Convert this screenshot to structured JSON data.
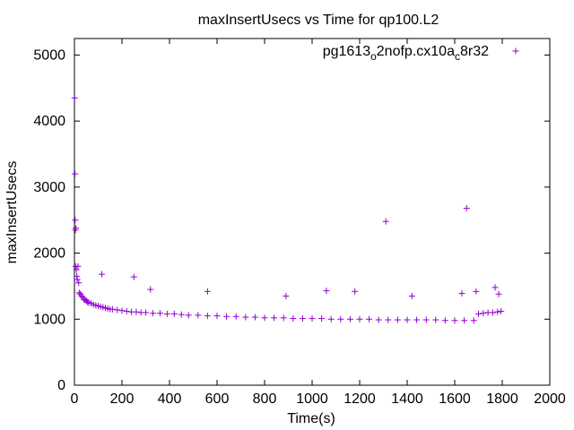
{
  "chart_data": {
    "type": "scatter",
    "title": "maxInsertUsecs vs Time for qp100.L2",
    "xlabel": "Time(s)",
    "ylabel": "maxInsertUsecs",
    "xlim": [
      0,
      2000
    ],
    "ylim": [
      0,
      5250
    ],
    "xticks": [
      0,
      200,
      400,
      600,
      800,
      1000,
      1200,
      1400,
      1600,
      1800,
      2000
    ],
    "yticks": [
      0,
      1000,
      2000,
      3000,
      4000,
      5000
    ],
    "grid": false,
    "legend_position": "top-right",
    "series": [
      {
        "name": "pg1613_o2nofp.cx10a_c8r32",
        "name_parts": {
          "a": "pg1613",
          "b": "o",
          "c": "2nofp.cx10a",
          "d": "c",
          "e": "8r32"
        },
        "color": "#9400d3",
        "marker": "plus",
        "x": [
          1,
          2,
          3,
          4,
          5,
          6,
          8,
          10,
          12,
          15,
          18,
          20,
          25,
          30,
          35,
          40,
          45,
          50,
          55,
          60,
          70,
          80,
          90,
          100,
          110,
          120,
          130,
          140,
          150,
          160,
          180,
          200,
          220,
          240,
          260,
          280,
          300,
          330,
          360,
          390,
          420,
          450,
          480,
          520,
          560,
          600,
          640,
          680,
          720,
          760,
          800,
          840,
          880,
          920,
          960,
          1000,
          1040,
          1080,
          1120,
          1160,
          1200,
          1240,
          1280,
          1320,
          1360,
          1400,
          1440,
          1480,
          1520,
          1560,
          1600,
          1640,
          1680,
          1700,
          1720,
          1740,
          1760,
          1780,
          1795,
          115,
          250,
          320,
          560,
          890,
          1060,
          1180,
          1310,
          1420,
          1630,
          1650,
          1690,
          1770,
          1785
        ],
        "y": [
          4350,
          3200,
          2500,
          2350,
          1800,
          2380,
          1750,
          1650,
          1600,
          1800,
          1550,
          1400,
          1380,
          1350,
          1330,
          1300,
          1290,
          1280,
          1260,
          1250,
          1240,
          1220,
          1210,
          1200,
          1190,
          1180,
          1170,
          1160,
          1150,
          1150,
          1140,
          1130,
          1120,
          1110,
          1110,
          1100,
          1100,
          1090,
          1090,
          1080,
          1080,
          1070,
          1060,
          1060,
          1050,
          1050,
          1040,
          1040,
          1030,
          1030,
          1020,
          1020,
          1020,
          1010,
          1010,
          1010,
          1010,
          1000,
          1000,
          1000,
          1000,
          1000,
          990,
          990,
          990,
          990,
          990,
          990,
          990,
          980,
          980,
          980,
          980,
          1080,
          1090,
          1100,
          1100,
          1110,
          1120,
          1680,
          1640,
          1450,
          1420,
          1350,
          1430,
          1420,
          2480,
          1350,
          1390,
          2680,
          1420,
          1480,
          1380
        ]
      }
    ]
  }
}
